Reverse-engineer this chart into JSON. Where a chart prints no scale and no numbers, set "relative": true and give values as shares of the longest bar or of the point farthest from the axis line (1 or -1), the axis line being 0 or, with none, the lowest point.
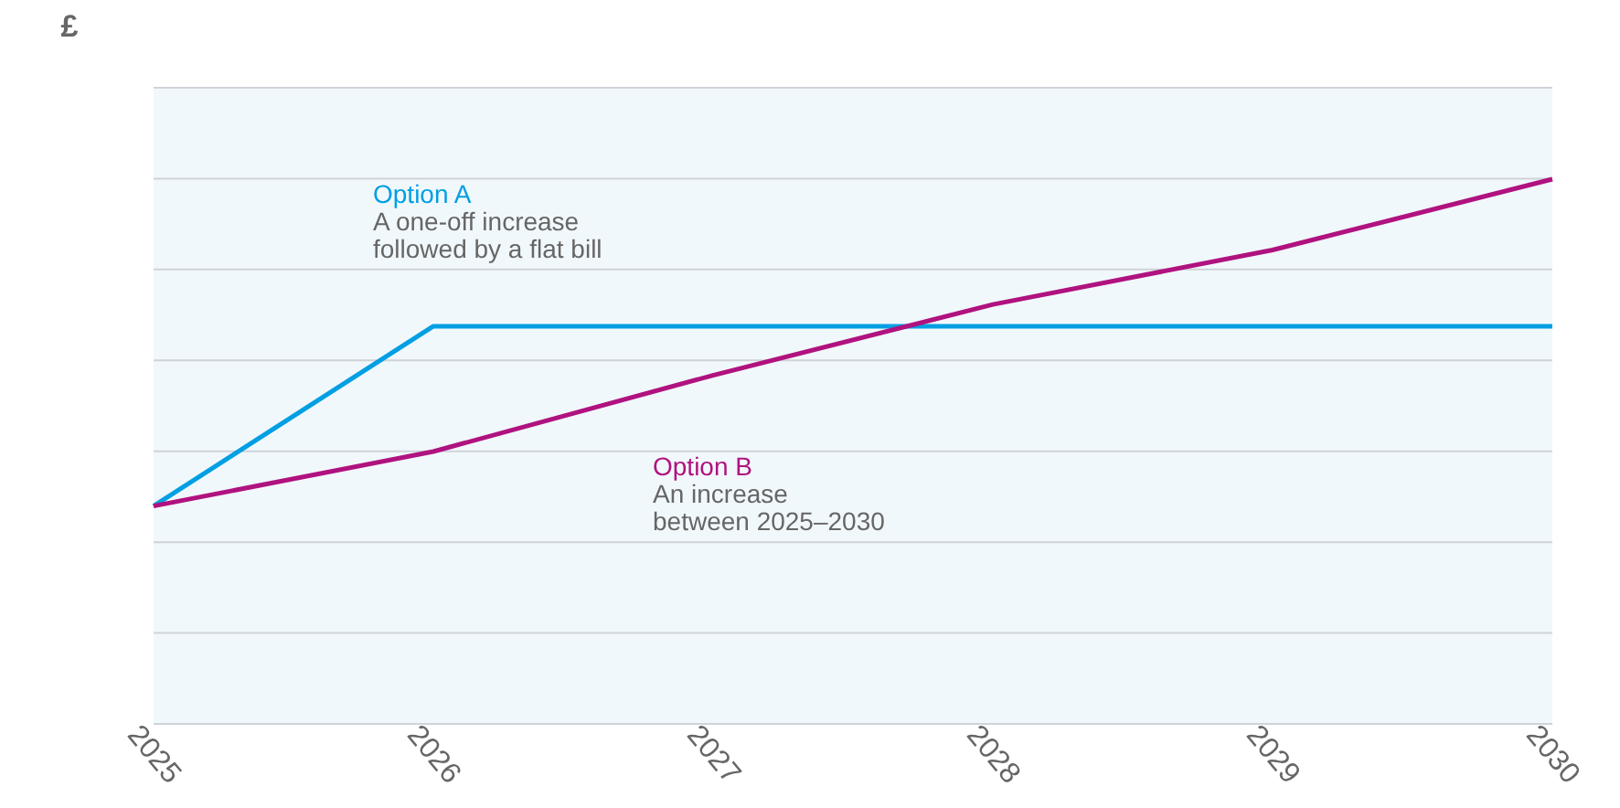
{
  "chart_data": {
    "type": "line",
    "ylabel": "£",
    "relative": true,
    "grid": "y",
    "x": [
      2025,
      2026,
      2027,
      2028,
      2029,
      2030
    ],
    "xlim": [
      2025,
      2030
    ],
    "xticks": [
      2025,
      2026,
      2027,
      2028,
      2029,
      2030
    ],
    "series": [
      {
        "name": "Option A",
        "color": "#009fe3",
        "values": [
          0.4,
          0.73,
          0.73,
          0.73,
          0.73,
          0.73
        ]
      },
      {
        "name": "Option B",
        "color": "#b0127f",
        "values": [
          0.4,
          0.5,
          0.64,
          0.77,
          0.87,
          1
        ]
      }
    ],
    "annotations": [
      "A one-off increase\nfollowed by a flat bill",
      "An increase\nbetween 2025–2030"
    ],
    "legend": false
  }
}
